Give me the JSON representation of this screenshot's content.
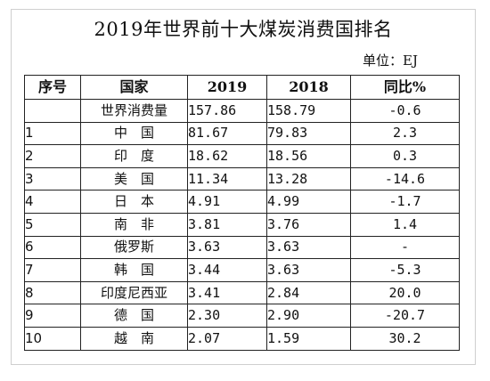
{
  "title": "2019年世界前十大煤炭消费国排名",
  "unit": "单位：EJ",
  "headers": {
    "no": "序号",
    "country": "国家",
    "y2019": "2019",
    "y2018": "2018",
    "yoy": "同比%"
  },
  "rows": [
    {
      "no": "",
      "country": "世界消费量",
      "y2019": "157.86",
      "y2018": "158.79",
      "yoy": "-0.6"
    },
    {
      "no": "1",
      "country": "中　国",
      "y2019": "81.67",
      "y2018": "79.83",
      "yoy": "2.3"
    },
    {
      "no": "2",
      "country": "印　度",
      "y2019": "18.62",
      "y2018": "18.56",
      "yoy": "0.3"
    },
    {
      "no": "3",
      "country": "美　国",
      "y2019": "11.34",
      "y2018": "13.28",
      "yoy": "-14.6"
    },
    {
      "no": "4",
      "country": "日　本",
      "y2019": "4.91",
      "y2018": "4.99",
      "yoy": "-1.7"
    },
    {
      "no": "5",
      "country": "南　非",
      "y2019": "3.81",
      "y2018": "3.76",
      "yoy": "1.4"
    },
    {
      "no": "6",
      "country": "俄罗斯",
      "y2019": "3.63",
      "y2018": "3.63",
      "yoy": "-"
    },
    {
      "no": "7",
      "country": "韩　国",
      "y2019": "3.44",
      "y2018": "3.63",
      "yoy": "-5.3"
    },
    {
      "no": "8",
      "country": "印度尼西亚",
      "y2019": "3.41",
      "y2018": "2.84",
      "yoy": "20.0"
    },
    {
      "no": "9",
      "country": "德　国",
      "y2019": "2.30",
      "y2018": "2.90",
      "yoy": "-20.7"
    },
    {
      "no": "10",
      "country": "越　南",
      "y2019": "2.07",
      "y2018": "1.59",
      "yoy": "30.2"
    }
  ]
}
